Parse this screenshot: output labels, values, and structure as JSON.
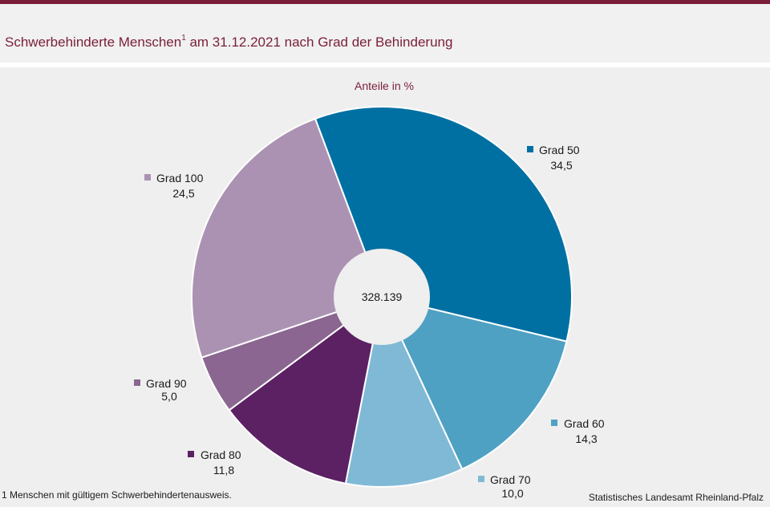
{
  "title": {
    "main": "Schwerbehinderte Menschen",
    "footnote_mark": "1",
    "rest": " am 31.12.2021 nach Grad der Behinderung"
  },
  "chart_data": {
    "type": "pie",
    "subtitle": "Anteile in %",
    "center_label": "328.139",
    "slices": [
      {
        "name": "Grad 50",
        "value": 34.5,
        "label": "34,5",
        "color": "#0070a3"
      },
      {
        "name": "Grad 60",
        "value": 14.3,
        "label": "14,3",
        "color": "#4ea1c3"
      },
      {
        "name": "Grad 70",
        "value": 10.0,
        "label": "10,0",
        "color": "#80b9d5"
      },
      {
        "name": "Grad 80",
        "value": 11.8,
        "label": "11,8",
        "color": "#5b2163"
      },
      {
        "name": "Grad 90",
        "value": 5.0,
        "label": "5,0",
        "color": "#8a6690"
      },
      {
        "name": "Grad 100",
        "value": 24.5,
        "label": "24,5",
        "color": "#ab92b3"
      }
    ]
  },
  "footnote": "1 Menschen mit gültigem Schwerbehindertenausweis.",
  "source": "Statistisches Landesamt Rheinland-Pfalz",
  "colors": {
    "accent": "#7b1e3a",
    "background": "#eeefee"
  }
}
